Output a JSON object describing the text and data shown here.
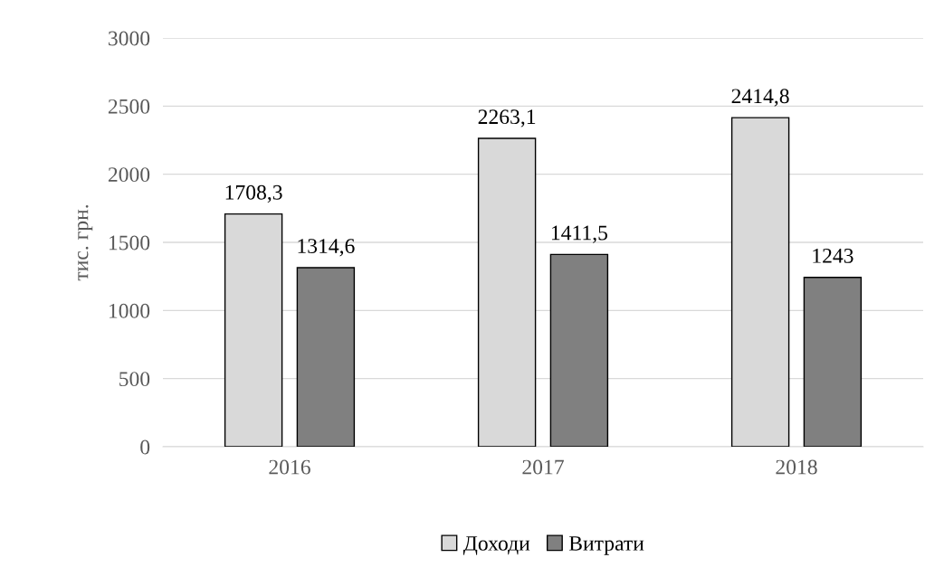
{
  "chart_data": {
    "type": "bar",
    "ylabel": "тис. грн.",
    "categories": [
      "2016",
      "2017",
      "2018"
    ],
    "series": [
      {
        "name": "Доходи",
        "color": "#d9d9d9",
        "values": [
          1708.3,
          2263.1,
          2414.8
        ],
        "value_labels": [
          "1708,3",
          "2263,1",
          "2414,8"
        ]
      },
      {
        "name": "Витрати",
        "color": "#808080",
        "values": [
          1314.6,
          1411.5,
          1243
        ],
        "value_labels": [
          "1314,6",
          "1411,5",
          "1243"
        ]
      }
    ],
    "ylim": [
      0,
      3000
    ],
    "yticks": [
      0,
      500,
      1000,
      1500,
      2000,
      2500,
      3000
    ],
    "grid": "y",
    "legend": "bottom"
  }
}
